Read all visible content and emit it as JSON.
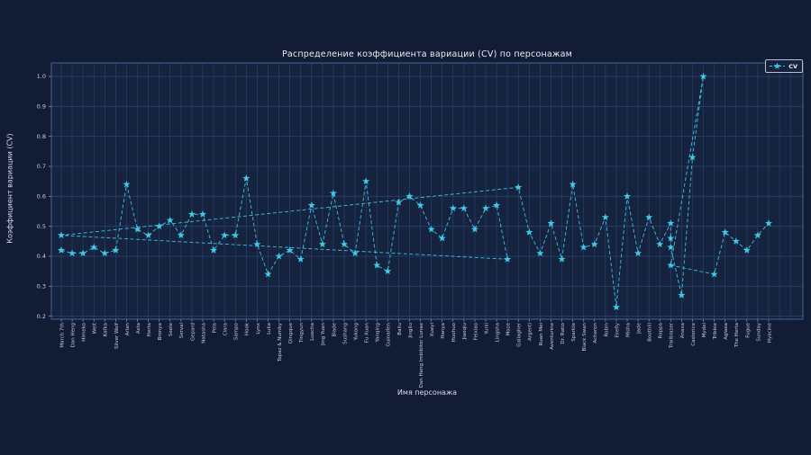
{
  "chart_data": {
    "type": "line",
    "title": "Распределение коэффициента вариации (CV) по персонажам",
    "xlabel": "Имя персонажа",
    "ylabel": "Коэффициент вариации (CV)",
    "ylim": [
      0.17,
      1.045
    ],
    "yticks": [
      0.2,
      0.3,
      0.4,
      0.5,
      0.6,
      0.7,
      0.8,
      0.9,
      1.0
    ],
    "ytick_labels": [
      "0.2",
      "0.3",
      "0.4",
      "0.5",
      "0.6",
      "0.7",
      "0.8",
      "0.9",
      "1.0"
    ],
    "grid": true,
    "line_style": "dashed",
    "marker": "star",
    "legend_position": "upper right",
    "colors": {
      "series": "#40c9e9",
      "figure_bg": "#121c34",
      "plot_bg": "#16233e",
      "grid": "#2a4678",
      "spine": "#44639b",
      "text": "#e8edf6",
      "tick_text": "#c3cfe2"
    },
    "categories": [
      "March 7th",
      "Dan Heng",
      "Himeko",
      "Welt",
      "Kafka",
      "Silver Wolf",
      "Arlan",
      "Asta",
      "Herta",
      "Bronya",
      "Seele",
      "Serval",
      "Gepard",
      "Natasha",
      "Pela",
      "Clara",
      "Sampo",
      "Hook",
      "Lynx",
      "Luka",
      "Topaz & Numby",
      "Qingque",
      "Tingyun",
      "Luocha",
      "Jing Yuan",
      "Blade",
      "Sushang",
      "Yukong",
      "Fu Xuan",
      "Yanqing",
      "Guinaifen",
      "Bailu",
      "Jingliu",
      "Dan Heng Imbibitor Lunae",
      "Xueyi",
      "Hanya",
      "Huohuo",
      "Jiaoqiu",
      "Feixiao",
      "Yunli",
      "Lingsha",
      "Moze",
      "Gallagher",
      "Argenti",
      "Ruan Mei",
      "Aventurine",
      "Dr. Ratio",
      "Sparkle",
      "Black Swan",
      "Acheron",
      "Robin",
      "Firefly",
      "Misha",
      "Jade",
      "Boothill",
      "Rappa",
      "Trailblazer",
      "Anaxa",
      "Castorice",
      "Mydei",
      "Tribbie",
      "Aglaea",
      "The Herta",
      "Fugue",
      "Sunday",
      "Hyacine"
    ],
    "series": [
      {
        "name": "CV",
        "points": [
          {
            "character": "March 7th",
            "cv": 0.42
          },
          {
            "character": "Dan Heng",
            "cv": 0.41
          },
          {
            "character": "Himeko",
            "cv": 0.41
          },
          {
            "character": "Welt",
            "cv": 0.43
          },
          {
            "character": "Kafka",
            "cv": 0.41
          },
          {
            "character": "Silver Wolf",
            "cv": 0.42
          },
          {
            "character": "Arlan",
            "cv": 0.64
          },
          {
            "character": "Asta",
            "cv": 0.49
          },
          {
            "character": "Herta",
            "cv": 0.47
          },
          {
            "character": "Bronya",
            "cv": 0.5
          },
          {
            "character": "Seele",
            "cv": 0.52
          },
          {
            "character": "Serval",
            "cv": 0.47
          },
          {
            "character": "Gepard",
            "cv": 0.54
          },
          {
            "character": "Natasha",
            "cv": 0.54
          },
          {
            "character": "Pela",
            "cv": 0.42
          },
          {
            "character": "Clara",
            "cv": 0.47
          },
          {
            "character": "Sampo",
            "cv": 0.47
          },
          {
            "character": "Hook",
            "cv": 0.66
          },
          {
            "character": "Lynx",
            "cv": 0.44
          },
          {
            "character": "Luka",
            "cv": 0.34
          },
          {
            "character": "Topaz & Numby",
            "cv": 0.4
          },
          {
            "character": "Qingque",
            "cv": 0.42
          },
          {
            "character": "Tingyun",
            "cv": 0.39
          },
          {
            "character": "Luocha",
            "cv": 0.57
          },
          {
            "character": "Jing Yuan",
            "cv": 0.44
          },
          {
            "character": "Blade",
            "cv": 0.61
          },
          {
            "character": "Sushang",
            "cv": 0.44
          },
          {
            "character": "Yukong",
            "cv": 0.41
          },
          {
            "character": "Fu Xuan",
            "cv": 0.65
          },
          {
            "character": "Yanqing",
            "cv": 0.37
          },
          {
            "character": "Guinaifen",
            "cv": 0.35
          },
          {
            "character": "Bailu",
            "cv": 0.58
          },
          {
            "character": "Jingliu",
            "cv": 0.6
          },
          {
            "character": "Dan Heng Imbibitor Lunae",
            "cv": 0.57
          },
          {
            "character": "Xueyi",
            "cv": 0.49
          },
          {
            "character": "Hanya",
            "cv": 0.46
          },
          {
            "character": "Huohuo",
            "cv": 0.56
          },
          {
            "character": "Jiaoqiu",
            "cv": 0.56
          },
          {
            "character": "Feixiao",
            "cv": 0.49
          },
          {
            "character": "Yunli",
            "cv": 0.56
          },
          {
            "character": "Lingsha",
            "cv": 0.57
          },
          {
            "character": "Moze",
            "cv": 0.39
          },
          {
            "character": "March 7th",
            "cv": 0.47
          },
          {
            "character": "Gallagher",
            "cv": 0.63
          },
          {
            "character": "Argenti",
            "cv": 0.48
          },
          {
            "character": "Ruan Mei",
            "cv": 0.41
          },
          {
            "character": "Aventurine",
            "cv": 0.51
          },
          {
            "character": "Dr. Ratio",
            "cv": 0.39
          },
          {
            "character": "Sparkle",
            "cv": 0.64
          },
          {
            "character": "Black Swan",
            "cv": 0.43
          },
          {
            "character": "Acheron",
            "cv": 0.44
          },
          {
            "character": "Robin",
            "cv": 0.53
          },
          {
            "character": "Firefly",
            "cv": 0.23
          },
          {
            "character": "Misha",
            "cv": 0.6
          },
          {
            "character": "Jade",
            "cv": 0.41
          },
          {
            "character": "Boothill",
            "cv": 0.53
          },
          {
            "character": "Rappa",
            "cv": 0.44
          },
          {
            "character": "Trailblazer",
            "cv": 0.51
          },
          {
            "character": "Trailblazer",
            "cv": 0.46
          },
          {
            "character": "Trailblazer",
            "cv": 0.43
          },
          {
            "character": "Anaxa",
            "cv": 0.27
          },
          {
            "character": "Castorice",
            "cv": 0.73
          },
          {
            "character": "Mydei",
            "cv": 1.0
          },
          {
            "character": "Trailblazer",
            "cv": 0.37
          },
          {
            "character": "Tribbie",
            "cv": 0.34
          },
          {
            "character": "Aglaea",
            "cv": 0.48
          },
          {
            "character": "The Herta",
            "cv": 0.45
          },
          {
            "character": "Fugue",
            "cv": 0.42
          },
          {
            "character": "Sunday",
            "cv": 0.47
          },
          {
            "character": "Hyacine",
            "cv": 0.51
          }
        ]
      }
    ]
  }
}
